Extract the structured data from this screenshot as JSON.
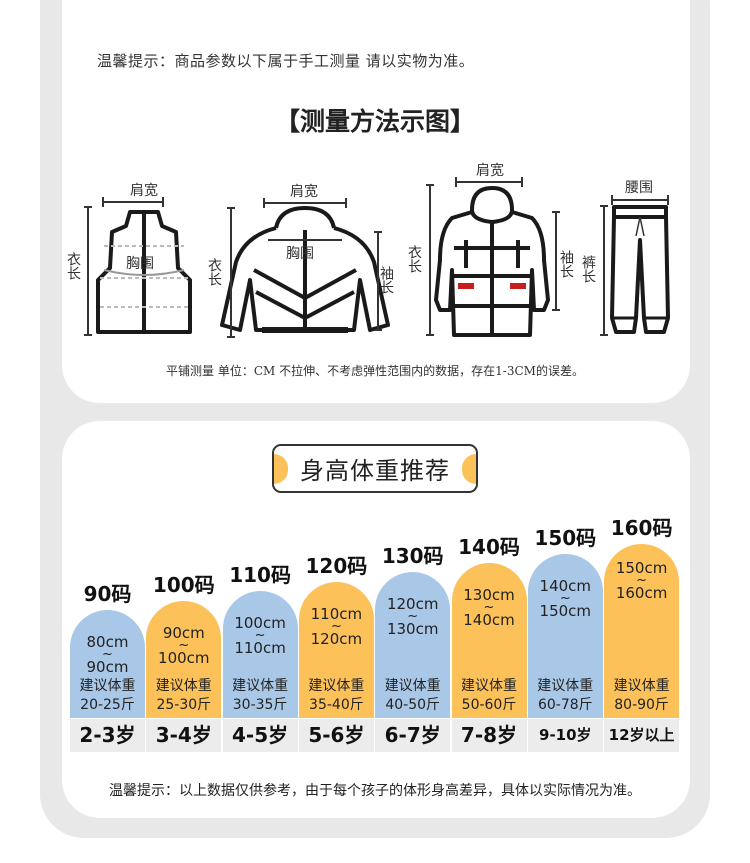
{
  "top_tip": "温馨提示：商品参数以下属于手工测量 请以实物为准。",
  "measure_title": "【测量方法示图】",
  "labels": {
    "shoulder": "肩宽",
    "chest": "胸围",
    "length": "衣长",
    "sleeve": "袖长",
    "waist": "腰围",
    "pants_length": "裤长"
  },
  "figures": [
    "vest-icon",
    "hooded-jacket-icon",
    "long-coat-icon",
    "pants-icon"
  ],
  "measure_note": "平铺测量   单位：CM   不拉伸、不考虑弹性范围内的数据，存在1-3CM的误差。",
  "recommend_title": "身高体重推荐",
  "colors": {
    "blue": "#a9c8e8",
    "orange": "#fdc15a",
    "frame": "#e8e8e8",
    "age_row": "#ececec"
  },
  "weight_label": "建议体重",
  "tilde": "~",
  "sizes": [
    {
      "size": "90码",
      "height_from": "80cm",
      "height_to": "90cm",
      "weight": "20-25斤",
      "age": "2-3岁",
      "color": "#a9c8e8"
    },
    {
      "size": "100码",
      "height_from": "90cm",
      "height_to": "100cm",
      "weight": "25-30斤",
      "age": "3-4岁",
      "color": "#fdc15a"
    },
    {
      "size": "110码",
      "height_from": "100cm",
      "height_to": "110cm",
      "weight": "30-35斤",
      "age": "4-5岁",
      "color": "#a9c8e8"
    },
    {
      "size": "120码",
      "height_from": "110cm",
      "height_to": "120cm",
      "weight": "35-40斤",
      "age": "5-6岁",
      "color": "#fdc15a"
    },
    {
      "size": "130码",
      "height_from": "120cm",
      "height_to": "130cm",
      "weight": "40-50斤",
      "age": "6-7岁",
      "color": "#a9c8e8"
    },
    {
      "size": "140码",
      "height_from": "130cm",
      "height_to": "140cm",
      "weight": "50-60斤",
      "age": "7-8岁",
      "color": "#fdc15a"
    },
    {
      "size": "150码",
      "height_from": "140cm",
      "height_to": "150cm",
      "weight": "60-78斤",
      "age": "9-10岁",
      "color": "#a9c8e8"
    },
    {
      "size": "160码",
      "height_from": "150cm",
      "height_to": "160cm",
      "weight": "80-90斤",
      "age": "12岁以上",
      "color": "#fdc15a"
    }
  ],
  "bottom_tip": "温馨提示：以上数据仅供参考，由于每个孩子的体形身高差异，具体以实际情况为准。"
}
